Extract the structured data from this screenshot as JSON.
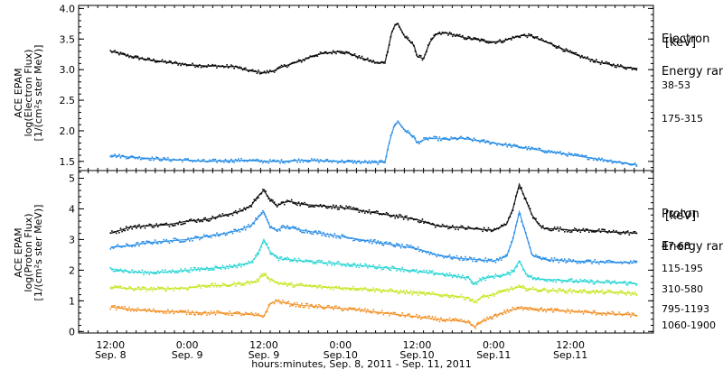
{
  "chart_data": [
    {
      "type": "scatter",
      "panel": "electron",
      "ylabel": [
        "ACE EPAM",
        "log(Electron Flux)",
        "[1/(cm²s ster MeV)]"
      ],
      "ylim": [
        1.35,
        4.05
      ],
      "yticks": [
        1.5,
        2.0,
        2.5,
        3.0,
        3.5,
        4.0
      ],
      "ytick_labels": [
        "1.5",
        "2.0",
        "2.5",
        "3.0",
        "3.5",
        "4.0"
      ],
      "legend_title": [
        "Electron",
        "Energy range",
        "[keV]"
      ],
      "series": [
        {
          "name": "38-53",
          "color": "#000000",
          "x": [
            0,
            3,
            6,
            9,
            12,
            15,
            18,
            21,
            24,
            27,
            30,
            33,
            36,
            39,
            42,
            45,
            48,
            51,
            54,
            57,
            60,
            63,
            66,
            69,
            72,
            75,
            78,
            81,
            84,
            86,
            87,
            88,
            89,
            90,
            92,
            95,
            96,
            98,
            100,
            102,
            105,
            108,
            111,
            114,
            117,
            120,
            123,
            126,
            129,
            132,
            135,
            138,
            141,
            144,
            147,
            150,
            153,
            156,
            159,
            162,
            165
          ],
          "y": [
            3.3,
            3.26,
            3.22,
            3.19,
            3.16,
            3.14,
            3.12,
            3.1,
            3.08,
            3.07,
            3.06,
            3.06,
            3.05,
            3.05,
            3.0,
            2.97,
            2.95,
            2.98,
            3.05,
            3.1,
            3.15,
            3.22,
            3.26,
            3.28,
            3.3,
            3.26,
            3.2,
            3.15,
            3.1,
            3.13,
            3.35,
            3.6,
            3.72,
            3.75,
            3.55,
            3.4,
            3.22,
            3.18,
            3.45,
            3.58,
            3.6,
            3.56,
            3.52,
            3.5,
            3.47,
            3.45,
            3.47,
            3.52,
            3.56,
            3.55,
            3.48,
            3.42,
            3.35,
            3.28,
            3.22,
            3.17,
            3.12,
            3.09,
            3.06,
            3.03,
            3.02
          ]
        },
        {
          "name": "175-315",
          "color": "#1e88e5",
          "x": [
            0,
            6,
            12,
            18,
            24,
            30,
            36,
            42,
            48,
            54,
            60,
            66,
            72,
            78,
            84,
            86,
            87,
            88,
            89,
            90,
            92,
            95,
            96,
            98,
            100,
            105,
            110,
            115,
            120,
            125,
            130,
            135,
            140,
            145,
            150,
            155,
            160,
            165
          ],
          "y": [
            1.6,
            1.57,
            1.55,
            1.53,
            1.52,
            1.5,
            1.51,
            1.52,
            1.5,
            1.5,
            1.52,
            1.51,
            1.5,
            1.49,
            1.48,
            1.5,
            1.75,
            1.95,
            2.1,
            2.15,
            2.02,
            1.9,
            1.8,
            1.85,
            1.88,
            1.86,
            1.88,
            1.84,
            1.8,
            1.76,
            1.72,
            1.68,
            1.64,
            1.6,
            1.56,
            1.52,
            1.48,
            1.44
          ]
        }
      ]
    },
    {
      "type": "scatter",
      "panel": "proton",
      "ylabel": [
        "ACE EPAM",
        "log(Proton Flux)",
        "[1/(cm²s ster MeV)]"
      ],
      "ylim": [
        -0.05,
        5.25
      ],
      "yticks": [
        0,
        1,
        2,
        3,
        4,
        5
      ],
      "ytick_labels": [
        "0",
        "1",
        "2",
        "3",
        "4",
        "5"
      ],
      "legend_title": [
        "Proton",
        "Energy range",
        "[keV]"
      ],
      "series": [
        {
          "name": "47-68",
          "color": "#000000",
          "x": [
            0,
            6,
            12,
            18,
            24,
            30,
            36,
            40,
            44,
            46,
            48,
            50,
            52,
            54,
            56,
            60,
            66,
            72,
            78,
            84,
            90,
            96,
            102,
            108,
            114,
            120,
            124,
            126,
            128,
            130,
            132,
            134,
            136,
            140,
            144,
            150,
            156,
            162,
            165
          ],
          "y": [
            3.2,
            3.4,
            3.45,
            3.48,
            3.6,
            3.65,
            3.8,
            3.9,
            4.1,
            4.4,
            4.6,
            4.3,
            4.1,
            4.2,
            4.25,
            4.15,
            4.1,
            4.05,
            3.95,
            3.85,
            3.75,
            3.65,
            3.45,
            3.4,
            3.35,
            3.3,
            3.5,
            4.0,
            4.8,
            4.3,
            3.8,
            3.5,
            3.35,
            3.35,
            3.3,
            3.3,
            3.25,
            3.22,
            3.2
          ]
        },
        {
          "name": "115-195",
          "color": "#1e88e5",
          "x": [
            0,
            6,
            12,
            18,
            24,
            30,
            36,
            40,
            44,
            46,
            48,
            50,
            52,
            54,
            56,
            60,
            66,
            72,
            78,
            84,
            90,
            96,
            102,
            108,
            114,
            120,
            124,
            126,
            128,
            130,
            132,
            134,
            136,
            140,
            144,
            150,
            156,
            162,
            165
          ],
          "y": [
            2.75,
            2.8,
            2.9,
            2.95,
            3.0,
            3.1,
            3.2,
            3.3,
            3.45,
            3.7,
            3.9,
            3.4,
            3.3,
            3.4,
            3.4,
            3.3,
            3.2,
            3.1,
            3.0,
            2.9,
            2.8,
            2.7,
            2.5,
            2.4,
            2.35,
            2.3,
            2.45,
            3.0,
            3.9,
            3.2,
            2.5,
            2.4,
            2.35,
            2.32,
            2.3,
            2.28,
            2.25,
            2.25,
            2.25
          ]
        },
        {
          "name": "310-580",
          "color": "#22d3d3",
          "x": [
            0,
            6,
            12,
            18,
            24,
            30,
            36,
            40,
            44,
            46,
            48,
            50,
            52,
            54,
            56,
            60,
            66,
            72,
            78,
            84,
            90,
            96,
            102,
            108,
            112,
            114,
            116,
            120,
            124,
            126,
            128,
            130,
            132,
            134,
            136,
            140,
            144,
            150,
            156,
            162,
            165
          ],
          "y": [
            2.05,
            1.95,
            1.92,
            1.95,
            2.0,
            2.05,
            2.1,
            2.15,
            2.25,
            2.5,
            3.0,
            2.6,
            2.4,
            2.35,
            2.35,
            2.3,
            2.25,
            2.2,
            2.15,
            2.1,
            2.05,
            1.95,
            1.9,
            1.8,
            1.75,
            1.55,
            1.7,
            1.8,
            1.85,
            1.95,
            2.3,
            1.9,
            1.75,
            1.7,
            1.7,
            1.68,
            1.65,
            1.62,
            1.6,
            1.58,
            1.55
          ]
        },
        {
          "name": "795-1193",
          "color": "#c6e51e",
          "x": [
            0,
            6,
            12,
            18,
            24,
            30,
            36,
            40,
            44,
            46,
            48,
            50,
            52,
            54,
            56,
            60,
            66,
            72,
            78,
            84,
            90,
            96,
            102,
            108,
            112,
            114,
            116,
            120,
            124,
            126,
            128,
            130,
            132,
            134,
            136,
            140,
            144,
            150,
            156,
            162,
            165
          ],
          "y": [
            1.45,
            1.4,
            1.38,
            1.4,
            1.42,
            1.5,
            1.5,
            1.55,
            1.6,
            1.65,
            1.9,
            1.7,
            1.6,
            1.55,
            1.52,
            1.5,
            1.45,
            1.42,
            1.4,
            1.35,
            1.3,
            1.25,
            1.2,
            1.15,
            1.1,
            0.95,
            1.1,
            1.2,
            1.35,
            1.4,
            1.45,
            1.4,
            1.38,
            1.35,
            1.35,
            1.33,
            1.32,
            1.3,
            1.28,
            1.25,
            1.22
          ]
        },
        {
          "name": "1060-1900",
          "color": "#f28c1c",
          "x": [
            0,
            6,
            12,
            18,
            24,
            30,
            36,
            40,
            44,
            46,
            48,
            50,
            52,
            54,
            56,
            60,
            66,
            72,
            78,
            84,
            90,
            96,
            102,
            108,
            112,
            114,
            116,
            120,
            124,
            126,
            128,
            130,
            132,
            134,
            136,
            140,
            144,
            150,
            156,
            162,
            165
          ],
          "y": [
            0.8,
            0.72,
            0.68,
            0.65,
            0.62,
            0.6,
            0.6,
            0.58,
            0.55,
            0.52,
            0.5,
            0.9,
            1.0,
            0.95,
            0.9,
            0.85,
            0.8,
            0.75,
            0.7,
            0.62,
            0.55,
            0.48,
            0.4,
            0.35,
            0.3,
            0.15,
            0.3,
            0.5,
            0.65,
            0.72,
            0.75,
            0.78,
            0.75,
            0.72,
            0.7,
            0.68,
            0.66,
            0.62,
            0.58,
            0.55,
            0.52
          ]
        }
      ]
    }
  ],
  "xaxis": {
    "title": "hours:minutes, Sep. 8, 2011 - Sep. 11, 2011",
    "xlim": [
      -10,
      170
    ],
    "ticks": [
      {
        "t": 0,
        "time": "12:00",
        "date": "Sep. 8"
      },
      {
        "t": 24,
        "time": "0:00",
        "date": "Sep. 9"
      },
      {
        "t": 48,
        "time": "12:00",
        "date": "Sep. 9"
      },
      {
        "t": 72,
        "time": "0:00",
        "date": "Sep.10"
      },
      {
        "t": 96,
        "time": "12:00",
        "date": "Sep.10"
      },
      {
        "t": 120,
        "time": "0:00",
        "date": "Sep.11"
      },
      {
        "t": 144,
        "time": "12:00",
        "date": "Sep.11"
      }
    ]
  }
}
